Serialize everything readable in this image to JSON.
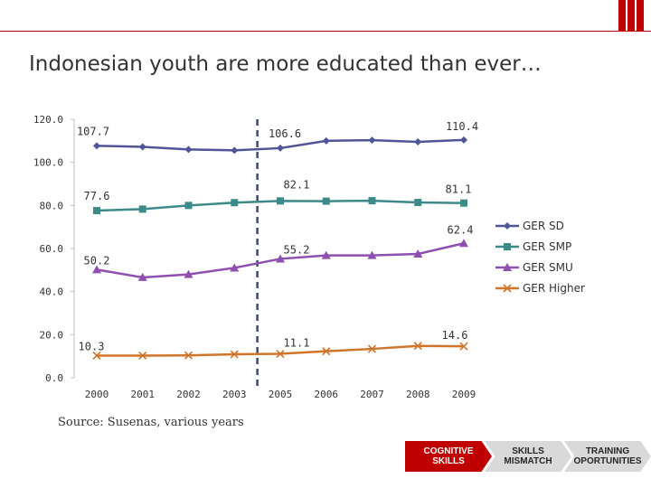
{
  "slide": {
    "title": "Indonesian youth are more educated than ever…",
    "source": "Source: Susenas, various years",
    "accent_color": "#c00000"
  },
  "nav": {
    "steps": [
      {
        "label": "COGNITIVE\nSKILLS",
        "active": true
      },
      {
        "label": "SKILLS\nMISMATCH",
        "active": false
      },
      {
        "label": "TRAINING\nOPORTUNITIES",
        "active": false
      }
    ]
  },
  "chart_data": {
    "type": "line",
    "title": "",
    "xlabel": "",
    "ylabel": "",
    "categories": [
      "2000",
      "2001",
      "2002",
      "2003",
      "2005",
      "2006",
      "2007",
      "2008",
      "2009"
    ],
    "ylim": [
      0,
      120
    ],
    "yticks": [
      "0.0",
      "20.0",
      "40.0",
      "60.0",
      "80.0",
      "100.0",
      "120.0"
    ],
    "grid": false,
    "legend_position": "right",
    "reference_line": {
      "between": [
        "2003",
        "2005"
      ],
      "style": "dashed",
      "color": "#3c4a7a"
    },
    "series": [
      {
        "name": "GER SD",
        "color": "#4f5596",
        "marker": "diamond",
        "values": [
          107.7,
          107.2,
          106.0,
          105.6,
          106.6,
          110.0,
          110.3,
          109.5,
          110.4
        ],
        "labels": [
          {
            "index": 0,
            "text": "107.7"
          },
          {
            "index": 4,
            "text": "106.6"
          },
          {
            "index": 8,
            "text": "110.4"
          }
        ]
      },
      {
        "name": "GER SMP",
        "color": "#3c8a8a",
        "marker": "square",
        "values": [
          77.6,
          78.3,
          80.0,
          81.3,
          82.1,
          82.0,
          82.2,
          81.4,
          81.1
        ],
        "labels": [
          {
            "index": 0,
            "text": "77.6"
          },
          {
            "index": 4,
            "text": "82.1"
          },
          {
            "index": 8,
            "text": "81.1"
          }
        ]
      },
      {
        "name": "GER SMU",
        "color": "#8e4fb0",
        "marker": "triangle",
        "values": [
          50.2,
          46.6,
          48.0,
          51.0,
          55.2,
          56.8,
          56.8,
          57.5,
          62.4
        ],
        "labels": [
          {
            "index": 0,
            "text": "50.2"
          },
          {
            "index": 4,
            "text": "55.2"
          },
          {
            "index": 8,
            "text": "62.4"
          }
        ]
      },
      {
        "name": "GER Higher",
        "color": "#d0742a",
        "marker": "x",
        "values": [
          10.3,
          10.3,
          10.4,
          10.9,
          11.1,
          12.3,
          13.4,
          14.8,
          14.6
        ],
        "labels": [
          {
            "index": 0,
            "text": "10.3"
          },
          {
            "index": 4,
            "text": "11.1"
          },
          {
            "index": 8,
            "text": "14.6"
          }
        ]
      }
    ]
  }
}
